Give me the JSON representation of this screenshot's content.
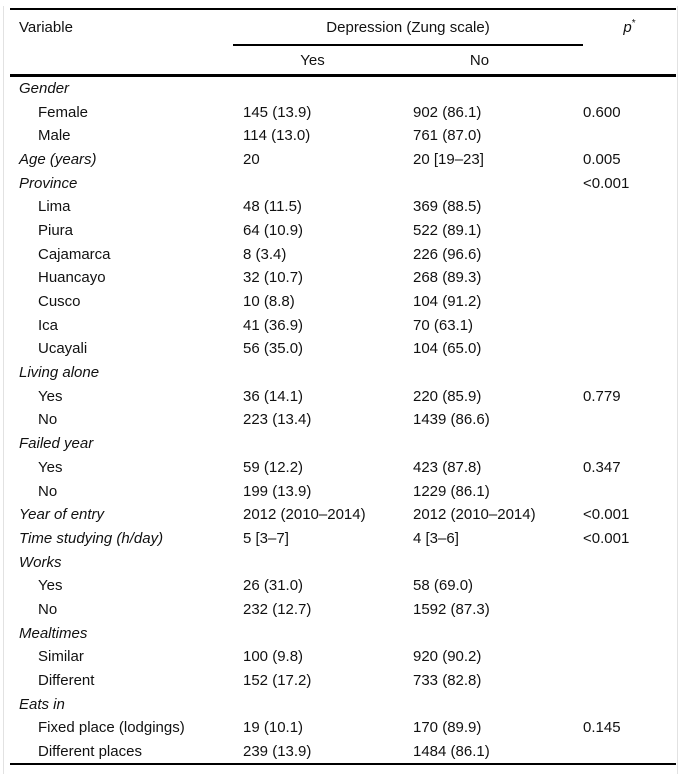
{
  "table": {
    "header": {
      "variable": "Variable",
      "group": "Depression (Zung scale)",
      "yes": "Yes",
      "no": "No",
      "p": "p",
      "p_sup": "*"
    },
    "rows": [
      {
        "label": "Gender",
        "style": "section",
        "yes": "",
        "no": "",
        "p": ""
      },
      {
        "label": "Female",
        "style": "item",
        "yes": "145 (13.9)",
        "no": "902 (86.1)",
        "p": "0.600"
      },
      {
        "label": "Male",
        "style": "item",
        "yes": "114 (13.0)",
        "no": "761 (87.0)",
        "p": ""
      },
      {
        "label": "Age (years)",
        "style": "section",
        "yes": "20",
        "no": "20 [19–23]",
        "p": "0.005"
      },
      {
        "label": "Province",
        "style": "section",
        "yes": "",
        "no": "",
        "p": "<0.001"
      },
      {
        "label": "Lima",
        "style": "item",
        "yes": "48 (11.5)",
        "no": "369 (88.5)",
        "p": ""
      },
      {
        "label": "Piura",
        "style": "item",
        "yes": "64 (10.9)",
        "no": "522 (89.1)",
        "p": ""
      },
      {
        "label": "Cajamarca",
        "style": "item",
        "yes": "8 (3.4)",
        "no": "226 (96.6)",
        "p": ""
      },
      {
        "label": "Huancayo",
        "style": "item",
        "yes": "32 (10.7)",
        "no": "268 (89.3)",
        "p": ""
      },
      {
        "label": "Cusco",
        "style": "item",
        "yes": "10 (8.8)",
        "no": "104 (91.2)",
        "p": ""
      },
      {
        "label": "Ica",
        "style": "item",
        "yes": "41 (36.9)",
        "no": "70 (63.1)",
        "p": ""
      },
      {
        "label": "Ucayali",
        "style": "item",
        "yes": "56 (35.0)",
        "no": "104 (65.0)",
        "p": ""
      },
      {
        "label": "Living alone",
        "style": "section",
        "yes": "",
        "no": "",
        "p": ""
      },
      {
        "label": "Yes",
        "style": "item",
        "yes": "36 (14.1)",
        "no": "220 (85.9)",
        "p": "0.779"
      },
      {
        "label": "No",
        "style": "item",
        "yes": "223 (13.4)",
        "no": "1439 (86.6)",
        "p": ""
      },
      {
        "label": "Failed year",
        "style": "section",
        "yes": "",
        "no": "",
        "p": ""
      },
      {
        "label": "Yes",
        "style": "item",
        "yes": "59 (12.2)",
        "no": "423 (87.8)",
        "p": "0.347"
      },
      {
        "label": "No",
        "style": "item",
        "yes": "199 (13.9)",
        "no": "1229 (86.1)",
        "p": ""
      },
      {
        "label": "Year of entry",
        "style": "section",
        "yes": "2012 (2010–2014)",
        "no": "2012 (2010–2014)",
        "p": "<0.001"
      },
      {
        "label": "Time studying (h/day)",
        "style": "section",
        "yes": "5 [3–7]",
        "no": "4 [3–6]",
        "p": "<0.001"
      },
      {
        "label": "Works",
        "style": "section",
        "yes": "",
        "no": "",
        "p": ""
      },
      {
        "label": "Yes",
        "style": "item",
        "yes": "26 (31.0)",
        "no": "58 (69.0)",
        "p": ""
      },
      {
        "label": "No",
        "style": "item",
        "yes": "232 (12.7)",
        "no": "1592 (87.3)",
        "p": ""
      },
      {
        "label": "Mealtimes",
        "style": "section",
        "yes": "",
        "no": "",
        "p": ""
      },
      {
        "label": "Similar",
        "style": "item",
        "yes": "100 (9.8)",
        "no": "920 (90.2)",
        "p": ""
      },
      {
        "label": "Different",
        "style": "item",
        "yes": "152 (17.2)",
        "no": "733 (82.8)",
        "p": ""
      },
      {
        "label": "Eats in",
        "style": "section",
        "yes": "",
        "no": "",
        "p": ""
      },
      {
        "label": "Fixed place (lodgings)",
        "style": "item",
        "yes": "19 (10.1)",
        "no": "170 (89.9)",
        "p": "0.145"
      },
      {
        "label": "Different places",
        "style": "item",
        "yes": "239 (13.9)",
        "no": "1484 (86.1)",
        "p": ""
      }
    ]
  }
}
